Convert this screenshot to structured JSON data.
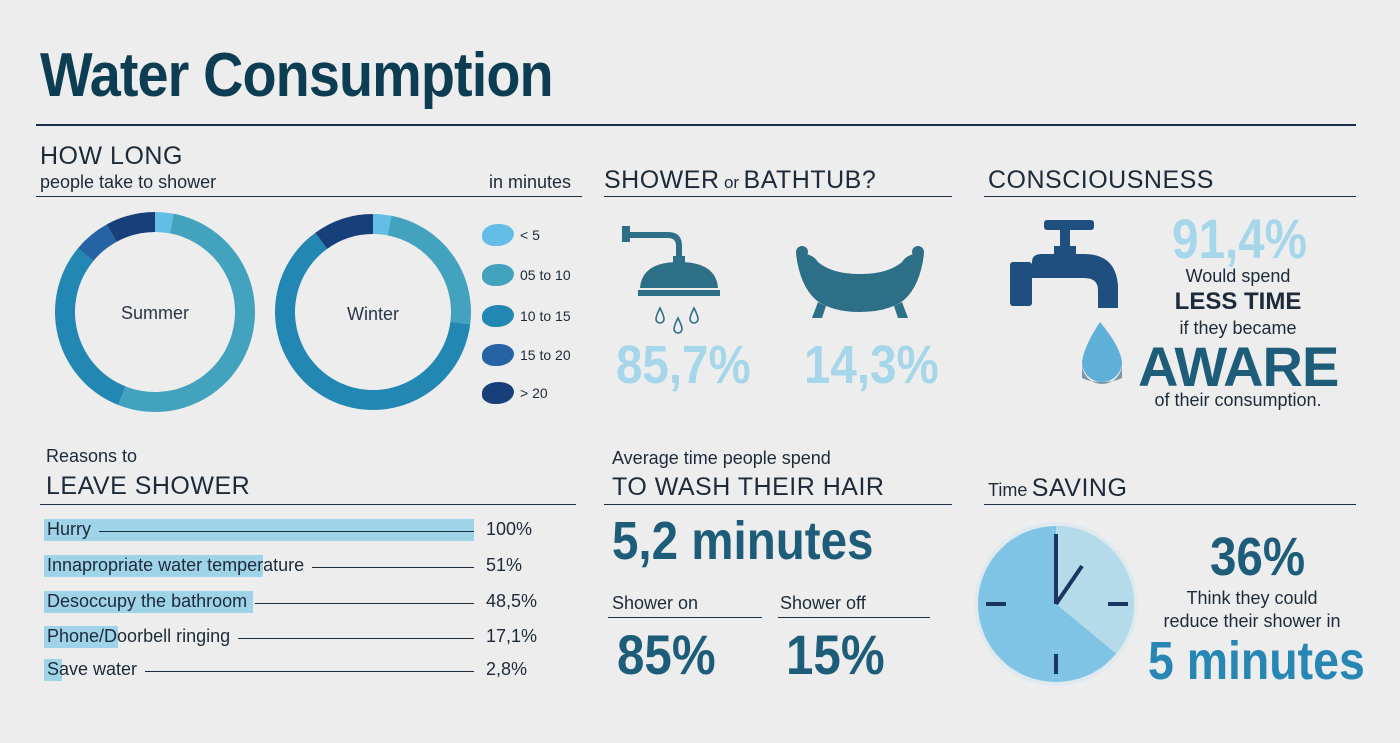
{
  "title": "Water Consumption",
  "how_long": {
    "heading": "HOW LONG",
    "subheading": "people take to shower",
    "unit": "in minutes",
    "summer_label": "Summer",
    "winter_label": "Winter"
  },
  "legend": [
    {
      "label": "< 5",
      "color": "#63bde6"
    },
    {
      "label": "05 to 10",
      "color": "#43a2bd"
    },
    {
      "label": "10 to 15",
      "color": "#2287b3"
    },
    {
      "label": "15 to 20",
      "color": "#2563a4"
    },
    {
      "label": "> 20",
      "color": "#173f7a"
    }
  ],
  "shower_or_bathtub": {
    "heading_a": "SHOWER",
    "heading_or": "or",
    "heading_b": "BATHTUB?",
    "shower_pct": "85,7%",
    "bathtub_pct": "14,3%"
  },
  "consciousness": {
    "heading": "CONSCIOUSNESS",
    "pct": "91,4%",
    "line1": "Would spend",
    "line2": "LESS TIME",
    "line3": "if they became",
    "line4": "AWARE",
    "line5": "of their consumption."
  },
  "reasons": {
    "heading_small": "Reasons to",
    "heading": "LEAVE SHOWER",
    "items": [
      {
        "label": "Hurry",
        "value_text": "100%",
        "value": 100
      },
      {
        "label": "Innapropriate water temperature",
        "value_text": "51%",
        "value": 51
      },
      {
        "label": "Desoccupy the bathroom",
        "value_text": "48,5%",
        "value": 48.5
      },
      {
        "label": "Phone/Doorbell ringing",
        "value_text": "17,1%",
        "value": 17.1
      },
      {
        "label": "Save water",
        "value_text": "2,8%",
        "value": 2.8
      }
    ]
  },
  "hair": {
    "heading_small": "Average time people spend",
    "heading": "TO WASH THEIR HAIR",
    "time": "5,2 minutes",
    "shower_on_label": "Shower on",
    "shower_off_label": "Shower off",
    "shower_on_pct": "85%",
    "shower_off_pct": "15%"
  },
  "time_saving": {
    "heading_small": "Time",
    "heading": "SAVING",
    "pct": "36%",
    "line1": "Think they could",
    "line2": "reduce their shower in",
    "minutes": "5 minutes",
    "clock_fraction": 0.36
  },
  "chart_data": [
    {
      "type": "pie",
      "title": "Summer",
      "categories": [
        "< 5",
        "05 to 10",
        "10 to 15",
        "15 to 20",
        "> 20"
      ],
      "values": [
        3,
        53,
        30,
        6,
        8
      ]
    },
    {
      "type": "pie",
      "title": "Winter",
      "categories": [
        "< 5",
        "05 to 10",
        "10 to 15",
        "15 to 20",
        "> 20"
      ],
      "values": [
        3,
        24,
        63,
        0,
        10
      ]
    }
  ]
}
